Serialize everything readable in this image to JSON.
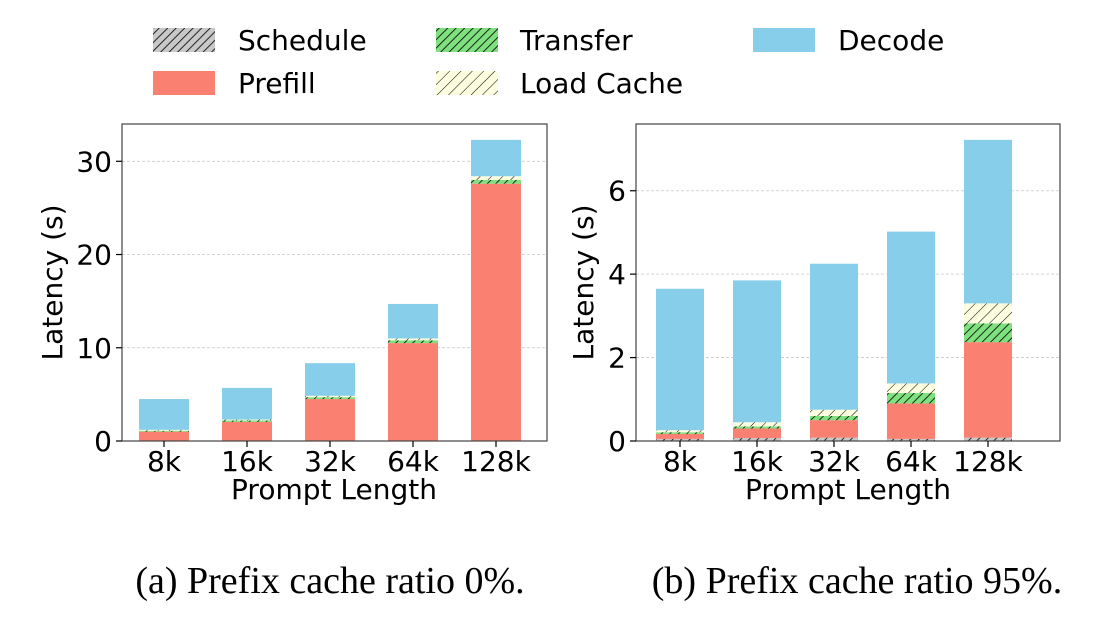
{
  "legend": {
    "items": [
      {
        "key": "schedule",
        "label": "Schedule",
        "color": "#c8c8c8",
        "hatch": "dense-black"
      },
      {
        "key": "transfer",
        "label": "Transfer",
        "color": "#7fe07f",
        "hatch": "dense-black"
      },
      {
        "key": "decode",
        "label": "Decode",
        "color": "#87ceeb",
        "hatch": "none"
      },
      {
        "key": "prefill",
        "label": "Prefill",
        "color": "#fa8072",
        "hatch": "none"
      },
      {
        "key": "load_cache",
        "label": "Load Cache",
        "color": "#fdfde0",
        "hatch": "sparse-black"
      }
    ]
  },
  "chart_data": [
    {
      "type": "bar",
      "stacked": true,
      "caption": "(a) Prefix cache ratio 0%.",
      "xlabel": "Prompt Length",
      "ylabel": "Latency (s)",
      "ylim": [
        0,
        34
      ],
      "yticks": [
        0,
        10,
        20,
        30
      ],
      "grid": true,
      "categories": [
        "8k",
        "16k",
        "32k",
        "64k",
        "128k"
      ],
      "series": [
        {
          "key": "schedule",
          "values": [
            0.05,
            0.05,
            0.05,
            0.05,
            0.05
          ]
        },
        {
          "key": "prefill",
          "values": [
            0.95,
            2.0,
            4.45,
            10.45,
            27.55
          ]
        },
        {
          "key": "transfer",
          "values": [
            0.1,
            0.15,
            0.2,
            0.3,
            0.4
          ]
        },
        {
          "key": "load_cache",
          "values": [
            0.1,
            0.1,
            0.15,
            0.2,
            0.4
          ]
        },
        {
          "key": "decode",
          "values": [
            3.3,
            3.4,
            3.5,
            3.7,
            3.9
          ]
        }
      ]
    },
    {
      "type": "bar",
      "stacked": true,
      "caption": "(b) Prefix cache ratio 95%.",
      "xlabel": "Prompt Length",
      "ylabel": "Latency (s)",
      "ylim": [
        0,
        7.6
      ],
      "yticks": [
        0,
        2,
        4,
        6
      ],
      "grid": true,
      "categories": [
        "8k",
        "16k",
        "32k",
        "64k",
        "128k"
      ],
      "series": [
        {
          "key": "schedule",
          "values": [
            0.05,
            0.07,
            0.08,
            0.05,
            0.08
          ]
        },
        {
          "key": "prefill",
          "values": [
            0.12,
            0.23,
            0.42,
            0.85,
            2.29
          ]
        },
        {
          "key": "transfer",
          "values": [
            0.04,
            0.05,
            0.1,
            0.25,
            0.45
          ]
        },
        {
          "key": "load_cache",
          "values": [
            0.05,
            0.1,
            0.15,
            0.23,
            0.48
          ]
        },
        {
          "key": "decode",
          "values": [
            3.39,
            3.4,
            3.5,
            3.64,
            3.92
          ]
        }
      ]
    }
  ]
}
